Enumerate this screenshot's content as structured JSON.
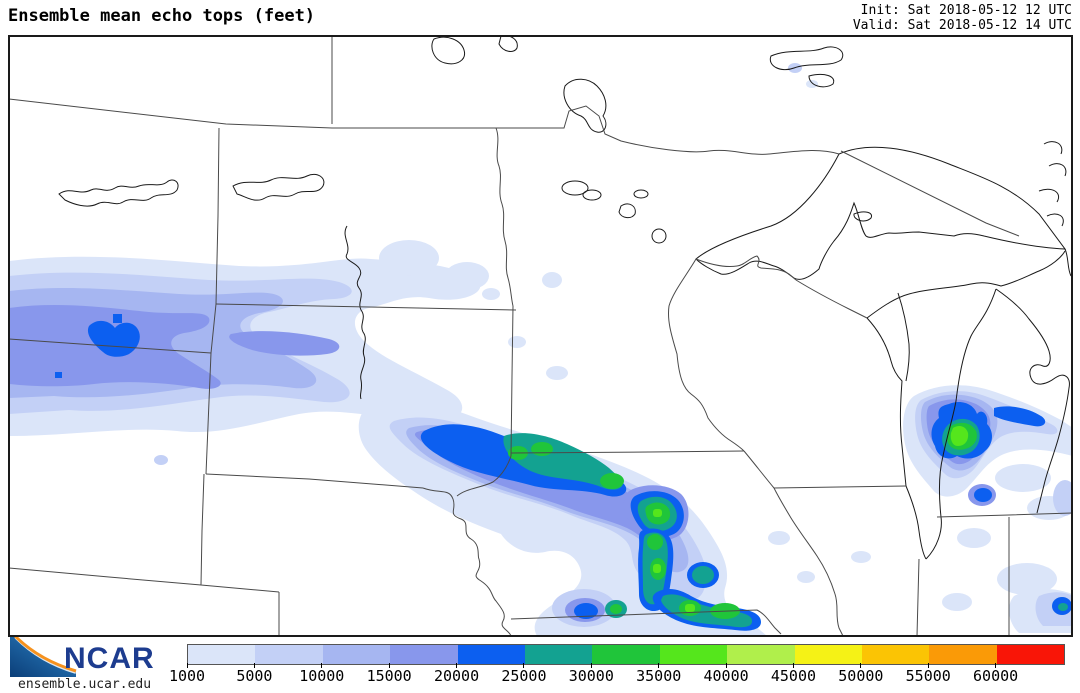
{
  "header": {
    "title": "Ensemble mean echo tops (feet)",
    "init_line": "Init: Sat 2018-05-12 12 UTC",
    "valid_line": "Valid: Sat 2018-05-12 14 UTC"
  },
  "branding": {
    "org": "NCAR",
    "site": "ensemble.ucar.edu",
    "logo_blue_dark": "#0b3e78",
    "logo_blue_light": "#2e85c8",
    "logo_orange": "#f6921e",
    "org_text_color": "#1d3c8f"
  },
  "map": {
    "description": "Upper Midwest / Northern Plains map with ensemble mean echo top shading",
    "border_color": "#4a4a4a",
    "water_color": "#1a1a1a",
    "background": "#ffffff"
  },
  "colorbar": {
    "units": "feet",
    "tick_labels": [
      "1000",
      "5000",
      "10000",
      "15000",
      "20000",
      "25000",
      "30000",
      "35000",
      "40000",
      "45000",
      "50000",
      "55000",
      "60000"
    ],
    "segment_colors": [
      "#dbe5f9",
      "#c3d0f6",
      "#a6b6f1",
      "#8897ec",
      "#0c5ff0",
      "#13a291",
      "#20c53a",
      "#55e61c",
      "#b0ef4b",
      "#f5f216",
      "#fbc404",
      "#fa9a07",
      "#f91507"
    ]
  },
  "chart_data": {
    "type": "heatmap",
    "title": "Ensemble mean echo tops (feet)",
    "legend_min": 1000,
    "legend_max": 60000,
    "legend_step": 5000,
    "legend_values": [
      1000,
      5000,
      10000,
      15000,
      20000,
      25000,
      30000,
      35000,
      40000,
      45000,
      50000,
      55000,
      60000
    ],
    "notable_features": [
      {
        "region": "eastern Montana / Wyoming border",
        "max_echo_top_ft": 25000
      },
      {
        "region": "central South Dakota into northeast Nebraska",
        "max_echo_top_ft": 35000
      },
      {
        "region": "eastern Nebraska / western Iowa cell chain",
        "max_echo_top_ft": 40000
      },
      {
        "region": "Lake Michigan / western Lower Michigan",
        "max_echo_top_ft": 40000
      }
    ]
  }
}
